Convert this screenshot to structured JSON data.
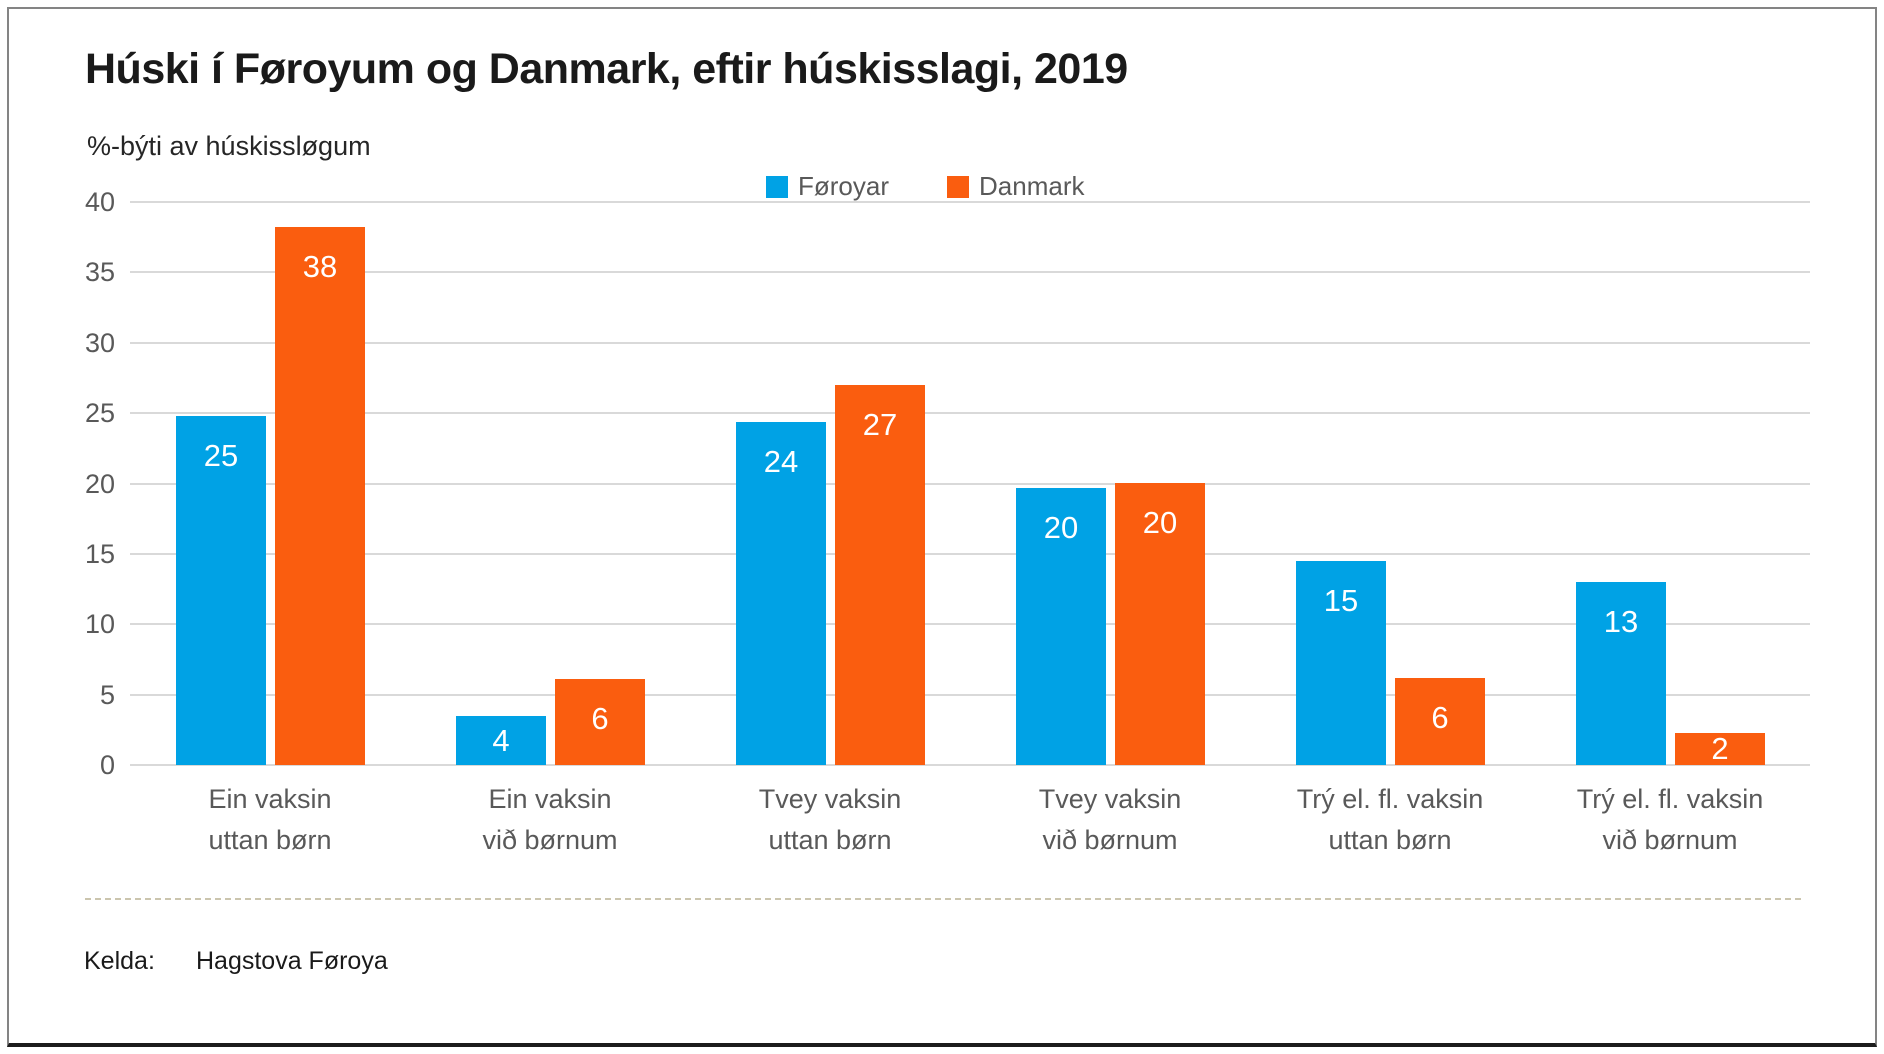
{
  "title": "Húski í Føroyum og Danmark, eftir húskisslagi, 2019",
  "subtitle": "%-býti av húskissløgum",
  "footer": {
    "source_label": "Kelda:",
    "source_value": "Hagstova Føroya"
  },
  "chart_data": {
    "type": "bar",
    "title": "Húski í Føroyum og Danmark, eftir húskisslagi, 2019",
    "ylabel": "%-býti av húskissløgum",
    "xlabel": "",
    "categories": [
      "Ein vaksin\nuttan børn",
      "Ein vaksin\nvið børnum",
      "Tvey vaksin\nuttan børn",
      "Tvey vaksin\nvið børnum",
      "Trý el. fl. vaksin\nuttan børn",
      "Trý el. fl. vaksin\nvið børnum"
    ],
    "series": [
      {
        "name": "Føroyar",
        "color": "#00a2e5",
        "values": [
          25,
          4,
          24,
          20,
          15,
          13
        ],
        "heights": [
          24.8,
          3.5,
          24.4,
          19.7,
          14.5,
          13.0
        ]
      },
      {
        "name": "Danmark",
        "color": "#fa5d0f",
        "values": [
          38,
          6,
          27,
          20,
          6,
          2
        ],
        "heights": [
          38.2,
          6.1,
          27.0,
          20.0,
          6.2,
          2.3
        ]
      }
    ],
    "ylim": [
      0,
      40
    ],
    "ytick_step": 5,
    "grid": true,
    "grid_color": "#d9d9d9",
    "axis_text_color": "#595959",
    "legend_position": "top-center"
  }
}
